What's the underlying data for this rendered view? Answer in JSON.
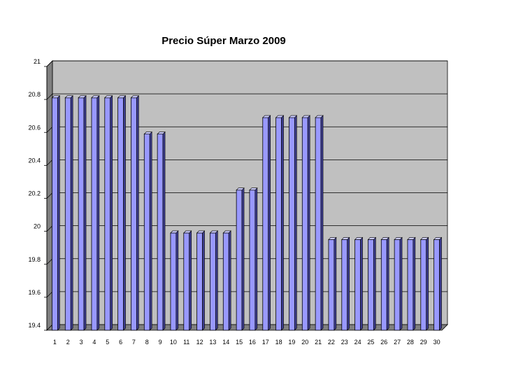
{
  "chart_data": {
    "type": "bar",
    "title": "Precio Súper Marzo 2009",
    "xlabel": "",
    "ylabel": "",
    "categories": [
      "1",
      "2",
      "3",
      "4",
      "5",
      "6",
      "7",
      "8",
      "9",
      "10",
      "11",
      "12",
      "13",
      "14",
      "15",
      "16",
      "17",
      "18",
      "19",
      "20",
      "21",
      "22",
      "23",
      "24",
      "25",
      "26",
      "27",
      "28",
      "29",
      "30"
    ],
    "values": [
      20.81,
      20.81,
      20.81,
      20.81,
      20.81,
      20.81,
      20.81,
      20.59,
      20.59,
      19.99,
      19.99,
      19.99,
      19.99,
      19.99,
      20.25,
      20.25,
      20.69,
      20.69,
      20.69,
      20.69,
      20.69,
      19.95,
      19.95,
      19.95,
      19.95,
      19.95,
      19.95,
      19.95,
      19.95,
      19.95
    ],
    "ylim": [
      19.4,
      21
    ],
    "yticks": [
      "19.4",
      "19.6",
      "19.8",
      "20",
      "20.2",
      "20.4",
      "20.6",
      "20.8",
      "21"
    ],
    "grid": true,
    "legend": "none",
    "colors": {
      "bar": "#9999ff",
      "bar_side": "#3d3d8f",
      "bar_top": "#ccccff",
      "wall": "#c0c0c0",
      "floor": "#808080"
    }
  }
}
